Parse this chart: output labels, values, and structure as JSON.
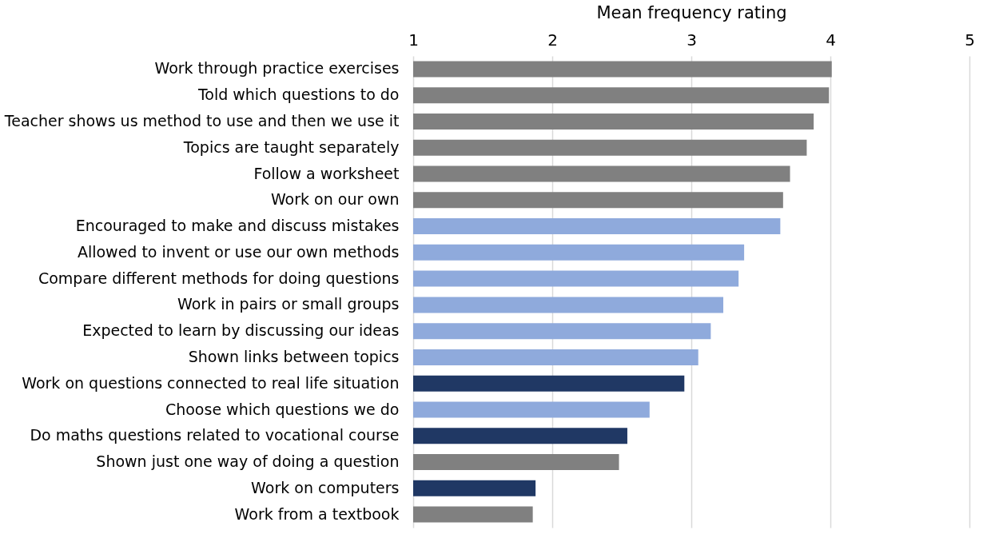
{
  "chart_data": {
    "type": "bar",
    "orientation": "horizontal",
    "xlabel": "Mean frequency rating",
    "categories": [
      "Work through practice exercises",
      "Told which questions to do",
      "Teacher shows us method to use and then we use it",
      "Topics are taught separately",
      "Follow a worksheet",
      "Work on our own",
      "Encouraged to make and discuss mistakes",
      "Allowed to invent or use our own methods",
      "Compare different methods for doing questions",
      "Work in pairs or small groups",
      "Expected to learn by discussing our ideas",
      "Shown links between topics",
      "Work on questions connected to real life situation",
      "Choose which questions we do",
      "Do maths questions related to vocational course",
      "Shown just one way of doing a question",
      "Work on computers",
      "Work from a textbook"
    ],
    "values": [
      4.01,
      3.99,
      3.88,
      3.83,
      3.71,
      3.66,
      3.64,
      3.38,
      3.34,
      3.23,
      3.14,
      3.05,
      2.95,
      2.7,
      2.54,
      2.48,
      1.88,
      1.86
    ],
    "colors": [
      "#808080",
      "#808080",
      "#808080",
      "#808080",
      "#808080",
      "#808080",
      "#8faadc",
      "#8faadc",
      "#8faadc",
      "#8faadc",
      "#8faadc",
      "#8faadc",
      "#203864",
      "#8faadc",
      "#203864",
      "#808080",
      "#203864",
      "#808080"
    ],
    "xlim": [
      1,
      5
    ],
    "xticks": [
      1,
      2,
      3,
      4,
      5
    ],
    "grid": "x"
  }
}
